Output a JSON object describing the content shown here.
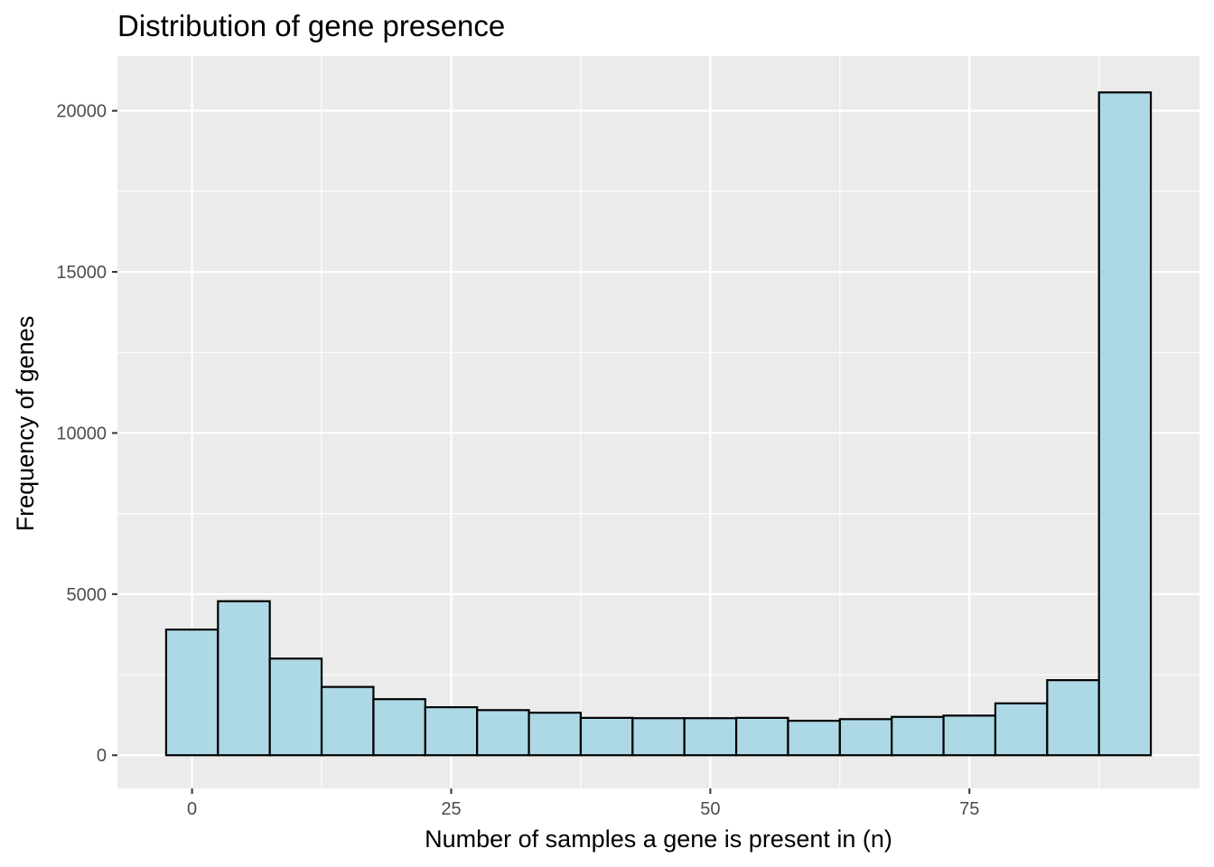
{
  "chart_data": {
    "type": "bar",
    "title": "Distribution of gene presence",
    "xlabel": "Number of samples a gene is present in (n)",
    "ylabel": "Frequency of genes",
    "xlim": [
      -7.2,
      97.2
    ],
    "ylim": [
      -1030,
      21700
    ],
    "x_ticks": [
      0,
      25,
      50,
      75
    ],
    "y_ticks": [
      0,
      5000,
      10000,
      15000,
      20000
    ],
    "x_tick_labels": [
      "0",
      "25",
      "50",
      "75"
    ],
    "y_tick_labels": [
      "0",
      "5000",
      "10000",
      "15000",
      "20000"
    ],
    "grid": true,
    "bar_fill": "#add8e6",
    "bar_stroke": "#000000",
    "panel_background": "#ebebeb",
    "bins": [
      {
        "x0": -2.5,
        "x1": 2.5,
        "count": 3900
      },
      {
        "x0": 2.5,
        "x1": 7.5,
        "count": 4780
      },
      {
        "x0": 7.5,
        "x1": 12.5,
        "count": 3000
      },
      {
        "x0": 12.5,
        "x1": 17.5,
        "count": 2120
      },
      {
        "x0": 17.5,
        "x1": 22.5,
        "count": 1740
      },
      {
        "x0": 22.5,
        "x1": 27.5,
        "count": 1490
      },
      {
        "x0": 27.5,
        "x1": 32.5,
        "count": 1400
      },
      {
        "x0": 32.5,
        "x1": 37.5,
        "count": 1320
      },
      {
        "x0": 37.5,
        "x1": 42.5,
        "count": 1160
      },
      {
        "x0": 42.5,
        "x1": 47.5,
        "count": 1150
      },
      {
        "x0": 47.5,
        "x1": 52.5,
        "count": 1150
      },
      {
        "x0": 52.5,
        "x1": 57.5,
        "count": 1160
      },
      {
        "x0": 57.5,
        "x1": 62.5,
        "count": 1070
      },
      {
        "x0": 62.5,
        "x1": 67.5,
        "count": 1120
      },
      {
        "x0": 67.5,
        "x1": 72.5,
        "count": 1190
      },
      {
        "x0": 72.5,
        "x1": 77.5,
        "count": 1230
      },
      {
        "x0": 77.5,
        "x1": 82.5,
        "count": 1610
      },
      {
        "x0": 82.5,
        "x1": 87.5,
        "count": 2330
      },
      {
        "x0": 87.5,
        "x1": 92.5,
        "count": 20570
      }
    ]
  }
}
